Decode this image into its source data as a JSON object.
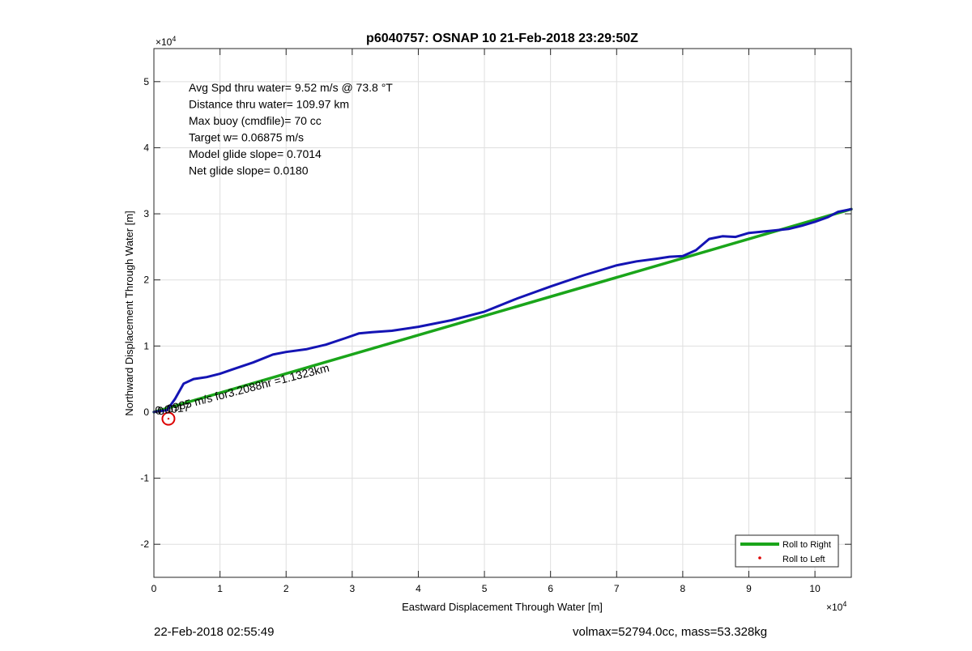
{
  "chart_data": {
    "type": "line",
    "title": "p6040757: OSNAP 10 21-Feb-2018 23:29:50Z",
    "xlabel": "Eastward Displacement Through Water [m]",
    "ylabel": "Northward Displacement Through Water [m]",
    "x_exponent_label": "×10",
    "x_exponent": "4",
    "y_exponent_label": "×10",
    "y_exponent": "4",
    "xlim": [
      0,
      105500
    ],
    "ylim": [
      -25000,
      55000
    ],
    "x_ticks": [
      0,
      10000,
      20000,
      30000,
      40000,
      50000,
      60000,
      70000,
      80000,
      90000,
      100000
    ],
    "x_tick_labels": [
      "0",
      "1",
      "2",
      "3",
      "4",
      "5",
      "6",
      "7",
      "8",
      "9",
      "10"
    ],
    "y_ticks": [
      -20000,
      -10000,
      0,
      10000,
      20000,
      30000,
      40000,
      50000
    ],
    "y_tick_labels": [
      "-2",
      "-1",
      "0",
      "1",
      "2",
      "3",
      "4",
      "5"
    ],
    "grid": true,
    "legend_position": "bottom-right",
    "legend": [
      "Roll to Right",
      "Roll to Left"
    ],
    "info_lines": [
      "Avg Spd thru water=  9.52 m/s @  73.8 °T",
      "Distance thru water= 109.97 km",
      "Max buoy (cmdfile)= 70 cc",
      "Target w= 0.06875 m/s",
      "Model glide slope= 0.7014",
      "Net glide slope= 0.0180"
    ],
    "annotation": "0.0985 m/s for3.2088hr =1.1323km",
    "annotation_overlap": "0.0017",
    "series": [
      {
        "name": "Roll to Right",
        "color": "#1aa51a",
        "x": [
          0,
          105500
        ],
        "y": [
          0,
          30700
        ]
      },
      {
        "color": "#1414b4",
        "x": [
          0,
          2000,
          3200,
          4500,
          6000,
          8000,
          10000,
          12000,
          15000,
          18000,
          20000,
          23000,
          26000,
          29000,
          31000,
          33000,
          36000,
          40000,
          45000,
          50000,
          55000,
          60000,
          65000,
          70000,
          73000,
          76000,
          78000,
          80000,
          82000,
          84000,
          86000,
          88000,
          90000,
          92000,
          94000,
          96000,
          98000,
          100000,
          102000,
          103500,
          105500
        ],
        "y": [
          0,
          300,
          2000,
          4300,
          5000,
          5300,
          5800,
          6500,
          7500,
          8700,
          9100,
          9500,
          10200,
          11200,
          11900,
          12100,
          12300,
          12900,
          13900,
          15200,
          17200,
          19000,
          20700,
          22200,
          22800,
          23200,
          23500,
          23600,
          24500,
          26200,
          26600,
          26500,
          27100,
          27300,
          27500,
          27700,
          28200,
          28800,
          29500,
          30300,
          30700
        ]
      }
    ],
    "points": [
      {
        "name": "Roll to Left",
        "color": "#dd0000",
        "x": 2200,
        "y": -1000
      }
    ],
    "colors": {
      "axes": "#262626",
      "grid": "#dfdfdf",
      "marker": "#dd0000"
    }
  },
  "footer": {
    "timestamp": "22-Feb-2018 02:55:49",
    "summary": "volmax=52794.0cc, mass=53.328kg"
  }
}
